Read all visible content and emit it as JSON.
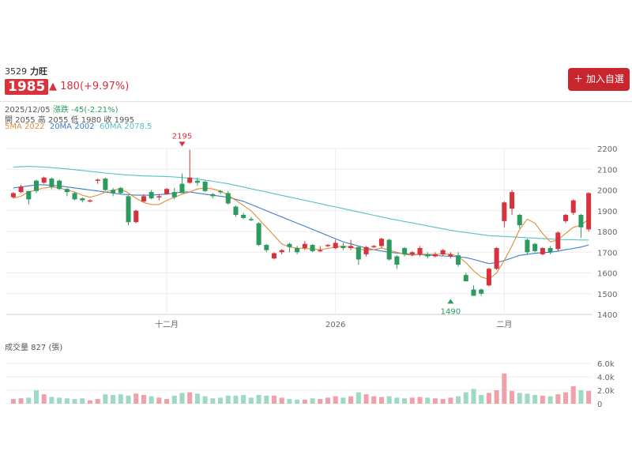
{
  "stock": {
    "code": "3529",
    "name": "力旺",
    "price": "1985",
    "change": "180(+9.97%)",
    "add_button": "＋ 加入自選"
  },
  "info": {
    "date": "2025/12/05",
    "day_change": "漲跌 -45(-2.21%)",
    "ohlc": "開 2055  高 2055  低 1980  收 1995",
    "ma5": "5MA 2022",
    "ma20": "20MA 2002",
    "ma60": "60MA 2078.5"
  },
  "volume_title": "成交量  827 (張)",
  "colors": {
    "up": "#d8323c",
    "down": "#2d9a5f",
    "ma5": "#e08e3a",
    "ma20": "#3d7dc8",
    "ma60": "#56c1c6",
    "vol_up": "#f0a0a8",
    "vol_down": "#9fd8c3"
  },
  "chart_data": {
    "type": "candlestick",
    "y_ticks": [
      "2200",
      "2100",
      "2000",
      "1900",
      "1800",
      "1700",
      "1600",
      "1500",
      "1400"
    ],
    "ylim": [
      1400,
      2200
    ],
    "x_tick_labels": [
      {
        "label": "十二月",
        "index": 20
      },
      {
        "label": "2026",
        "index": 42
      },
      {
        "label": "二月",
        "index": 64
      }
    ],
    "annotations": [
      {
        "label": "2195",
        "index": 22,
        "price": 2195,
        "kind": "high"
      },
      {
        "label": "1490",
        "index": 57,
        "price": 1490,
        "kind": "low"
      }
    ],
    "candles": [
      [
        1965,
        1985,
        1960,
        1990
      ],
      [
        1990,
        2015,
        1985,
        2025
      ],
      [
        1995,
        1955,
        1930,
        1995
      ],
      [
        2045,
        1995,
        1985,
        2050
      ],
      [
        2035,
        2060,
        2030,
        2065
      ],
      [
        2055,
        2015,
        2005,
        2060
      ],
      [
        2045,
        2005,
        2000,
        2050
      ],
      [
        2005,
        1990,
        1970,
        2010
      ],
      [
        1985,
        1955,
        1950,
        1990
      ],
      [
        1960,
        1950,
        1940,
        1965
      ],
      [
        1950,
        1950,
        1940,
        1955
      ],
      [
        2045,
        2050,
        2030,
        2055
      ],
      [
        2055,
        2000,
        1995,
        2060
      ],
      [
        2000,
        1985,
        1970,
        2010
      ],
      [
        2010,
        1985,
        1980,
        2015
      ],
      [
        1970,
        1845,
        1830,
        1975
      ],
      [
        1845,
        1900,
        1840,
        1905
      ],
      [
        1945,
        1970,
        1940,
        1980
      ],
      [
        1990,
        1960,
        1955,
        2000
      ],
      [
        1965,
        1970,
        1950,
        1980
      ],
      [
        1980,
        2005,
        1980,
        2010
      ],
      [
        1990,
        1965,
        1955,
        2010
      ],
      [
        2030,
        1985,
        1985,
        2080
      ],
      [
        2035,
        2060,
        2030,
        2195
      ],
      [
        2045,
        2035,
        2020,
        2060
      ],
      [
        2040,
        1995,
        1990,
        2045
      ],
      [
        1980,
        1970,
        1960,
        1985
      ],
      [
        1995,
        1990,
        1980,
        2000
      ],
      [
        1985,
        1935,
        1930,
        1995
      ],
      [
        1920,
        1880,
        1870,
        1925
      ],
      [
        1880,
        1865,
        1860,
        1890
      ],
      [
        1860,
        1855,
        1850,
        1870
      ],
      [
        1840,
        1735,
        1730,
        1845
      ],
      [
        1735,
        1710,
        1700,
        1740
      ],
      [
        1670,
        1695,
        1665,
        1700
      ],
      [
        1700,
        1710,
        1690,
        1715
      ],
      [
        1740,
        1725,
        1700,
        1745
      ],
      [
        1720,
        1700,
        1690,
        1730
      ],
      [
        1720,
        1740,
        1710,
        1755
      ],
      [
        1735,
        1705,
        1700,
        1740
      ],
      [
        1710,
        1710,
        1700,
        1730
      ],
      [
        1730,
        1735,
        1725,
        1740
      ],
      [
        1720,
        1745,
        1715,
        1760
      ],
      [
        1730,
        1720,
        1710,
        1745
      ],
      [
        1720,
        1730,
        1710,
        1760
      ],
      [
        1725,
        1665,
        1640,
        1730
      ],
      [
        1690,
        1725,
        1680,
        1730
      ],
      [
        1725,
        1730,
        1720,
        1735
      ],
      [
        1730,
        1765,
        1720,
        1770
      ],
      [
        1760,
        1665,
        1660,
        1765
      ],
      [
        1680,
        1640,
        1620,
        1685
      ],
      [
        1720,
        1690,
        1680,
        1725
      ],
      [
        1690,
        1700,
        1680,
        1705
      ],
      [
        1690,
        1720,
        1680,
        1730
      ],
      [
        1690,
        1680,
        1670,
        1700
      ],
      [
        1680,
        1690,
        1675,
        1700
      ],
      [
        1690,
        1710,
        1680,
        1715
      ],
      [
        1680,
        1690,
        1670,
        1700
      ],
      [
        1685,
        1640,
        1630,
        1700
      ],
      [
        1590,
        1560,
        1560,
        1600
      ],
      [
        1520,
        1490,
        1490,
        1540
      ],
      [
        1520,
        1500,
        1490,
        1525
      ],
      [
        1540,
        1620,
        1535,
        1625
      ],
      [
        1620,
        1720,
        1615,
        1725
      ],
      [
        1850,
        1940,
        1820,
        1945
      ],
      [
        1910,
        1990,
        1880,
        2000
      ],
      [
        1880,
        1830,
        1815,
        1885
      ],
      [
        1760,
        1700,
        1690,
        1765
      ],
      [
        1740,
        1705,
        1700,
        1745
      ],
      [
        1690,
        1720,
        1685,
        1725
      ],
      [
        1720,
        1700,
        1690,
        1730
      ],
      [
        1715,
        1795,
        1705,
        1800
      ],
      [
        1850,
        1880,
        1840,
        1885
      ],
      [
        1890,
        1950,
        1880,
        1955
      ],
      [
        1880,
        1820,
        1770,
        1885
      ],
      [
        1810,
        1985,
        1800,
        1990
      ]
    ],
    "ma5_values": [
      1960,
      1970,
      1990,
      2000,
      2010,
      2015,
      2010,
      2000,
      1990,
      1975,
      1965,
      1975,
      1990,
      2000,
      2005,
      1985,
      1960,
      1940,
      1930,
      1930,
      1950,
      1965,
      1980,
      1990,
      2005,
      2010,
      2005,
      1995,
      1975,
      1950,
      1925,
      1900,
      1860,
      1820,
      1780,
      1740,
      1725,
      1720,
      1718,
      1715,
      1712,
      1718,
      1725,
      1730,
      1725,
      1715,
      1710,
      1712,
      1720,
      1710,
      1700,
      1690,
      1685,
      1690,
      1690,
      1690,
      1692,
      1690,
      1680,
      1650,
      1610,
      1580,
      1570,
      1600,
      1660,
      1730,
      1810,
      1860,
      1840,
      1790,
      1750,
      1760,
      1790,
      1820,
      1830,
      1860
    ],
    "ma20_values": [
      2010,
      2015,
      2020,
      2025,
      2025,
      2022,
      2020,
      2015,
      2010,
      2005,
      2000,
      1995,
      1990,
      1985,
      1980,
      1978,
      1975,
      1975,
      1975,
      1978,
      1980,
      1985,
      1990,
      1990,
      1985,
      1980,
      1975,
      1970,
      1965,
      1955,
      1945,
      1930,
      1915,
      1900,
      1885,
      1870,
      1855,
      1840,
      1825,
      1810,
      1795,
      1780,
      1765,
      1750,
      1740,
      1730,
      1720,
      1712,
      1706,
      1700,
      1696,
      1693,
      1690,
      1688,
      1686,
      1684,
      1682,
      1680,
      1678,
      1674,
      1665,
      1655,
      1645,
      1650,
      1660,
      1672,
      1685,
      1690,
      1695,
      1698,
      1700,
      1705,
      1712,
      1718,
      1725,
      1735
    ],
    "ma60_values": [
      2110,
      2112,
      2114,
      2112,
      2110,
      2108,
      2105,
      2102,
      2098,
      2094,
      2090,
      2086,
      2082,
      2078,
      2075,
      2072,
      2070,
      2068,
      2067,
      2066,
      2065,
      2063,
      2060,
      2057,
      2053,
      2048,
      2042,
      2036,
      2030,
      2022,
      2014,
      2006,
      1998,
      1990,
      1982,
      1974,
      1966,
      1958,
      1950,
      1942,
      1934,
      1926,
      1918,
      1910,
      1902,
      1894,
      1886,
      1878,
      1870,
      1862,
      1855,
      1848,
      1841,
      1834,
      1827,
      1820,
      1813,
      1806,
      1800,
      1795,
      1790,
      1785,
      1780,
      1778,
      1776,
      1774,
      1772,
      1770,
      1768,
      1766,
      1764,
      1762,
      1760,
      1760,
      1759,
      1759
    ],
    "volume": {
      "y_ticks": [
        "6.0k",
        "4.0k",
        "2.0k",
        "0"
      ],
      "ylim": [
        0,
        6000
      ],
      "values": [
        700,
        800,
        900,
        2000,
        1400,
        1000,
        900,
        800,
        700,
        800,
        500,
        700,
        1400,
        1300,
        1400,
        1200,
        1500,
        1300,
        1100,
        900,
        700,
        1200,
        1600,
        1700,
        1500,
        1100,
        800,
        900,
        1200,
        1200,
        1300,
        900,
        1300,
        1200,
        1200,
        900,
        700,
        600,
        600,
        800,
        700,
        900,
        1100,
        900,
        1100,
        1700,
        1400,
        1100,
        1000,
        1100,
        900,
        800,
        900,
        1000,
        900,
        800,
        700,
        900,
        1100,
        1700,
        2200,
        1300,
        1600,
        2000,
        4500,
        1900,
        1600,
        1500,
        1300,
        1200,
        1100,
        1400,
        1700,
        2600,
        2000,
        1900
      ]
    }
  }
}
